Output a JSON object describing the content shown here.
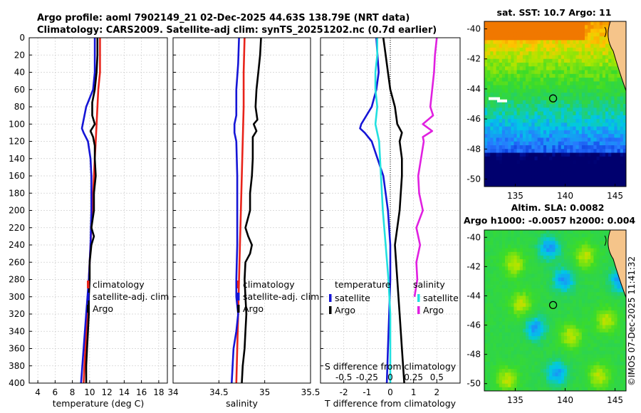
{
  "figure": {
    "title1": "Argo profile: aoml 7902149_21 02-Dec-2025 44.63S 138.79E (NRT data)",
    "title2": "Climatology: CARS2009. Satellite-adj clim: synTS_20251202.nc (0.7d earlier)",
    "watermark": "©IMOS 07-Dec-2025 11:41:32"
  },
  "chart_data": [
    {
      "type": "line",
      "name": "temperature-profile",
      "xlabel": "temperature (deg C)",
      "xlim": [
        3,
        19
      ],
      "xticks": [
        4,
        6,
        8,
        10,
        12,
        14,
        16,
        18
      ],
      "ylim": [
        400,
        0
      ],
      "yticks": [
        0,
        20,
        40,
        60,
        80,
        100,
        120,
        140,
        160,
        180,
        200,
        220,
        240,
        260,
        280,
        300,
        320,
        340,
        360,
        380,
        400
      ],
      "grid": true,
      "legend_position": "bottom-right",
      "legend": [
        "climatology",
        "satellite-adj. clim",
        "Argo"
      ],
      "series": [
        {
          "name": "climatology",
          "color": "#e8231a",
          "depth": [
            0,
            20,
            40,
            60,
            80,
            100,
            120,
            140,
            160,
            200,
            240,
            280,
            320,
            360,
            400
          ],
          "values": [
            11.2,
            11.2,
            11.2,
            11.0,
            10.9,
            10.8,
            10.7,
            10.6,
            10.5,
            10.3,
            10.1,
            9.9,
            9.7,
            9.5,
            9.3
          ]
        },
        {
          "name": "satellite-adj. clim",
          "color": "#1515d6",
          "depth": [
            0,
            20,
            40,
            60,
            70,
            80,
            90,
            100,
            105,
            110,
            120,
            140,
            160,
            200,
            240,
            280,
            320,
            360,
            400
          ],
          "values": [
            10.6,
            10.6,
            10.6,
            10.4,
            10.0,
            9.6,
            9.4,
            9.2,
            9.1,
            9.3,
            9.8,
            10.1,
            10.2,
            10.2,
            10.1,
            9.9,
            9.6,
            9.3,
            9.0
          ]
        },
        {
          "name": "Argo",
          "color": "#000000",
          "depth": [
            0,
            20,
            40,
            60,
            75,
            90,
            100,
            108,
            115,
            125,
            140,
            160,
            180,
            200,
            220,
            230,
            240,
            260,
            280,
            300,
            320,
            340,
            360,
            380,
            400
          ],
          "values": [
            10.9,
            10.9,
            10.8,
            10.6,
            10.3,
            10.3,
            10.6,
            10.1,
            10.4,
            10.6,
            10.6,
            10.7,
            10.5,
            10.5,
            10.2,
            10.5,
            10.2,
            10.0,
            10.0,
            9.9,
            9.9,
            9.8,
            9.7,
            9.6,
            9.6
          ]
        }
      ]
    },
    {
      "type": "line",
      "name": "salinity-profile",
      "xlabel": "salinity",
      "xlim": [
        34,
        35.5
      ],
      "xticks": [
        34,
        34.5,
        35,
        35.5
      ],
      "ylim": [
        400,
        0
      ],
      "grid": true,
      "legend_position": "bottom-right",
      "legend": [
        "climatology",
        "satellite-adj. clim",
        "Argo"
      ],
      "series": [
        {
          "name": "climatology",
          "color": "#e8231a",
          "depth": [
            0,
            40,
            80,
            120,
            160,
            200,
            240,
            280,
            320,
            360,
            400
          ],
          "values": [
            34.78,
            34.77,
            34.77,
            34.76,
            34.75,
            34.74,
            34.73,
            34.72,
            34.71,
            34.7,
            34.69
          ]
        },
        {
          "name": "satellite-adj. clim",
          "color": "#1515d6",
          "depth": [
            0,
            30,
            60,
            90,
            100,
            110,
            120,
            160,
            200,
            240,
            280,
            300,
            320,
            340,
            360,
            380,
            400
          ],
          "values": [
            34.72,
            34.71,
            34.69,
            34.69,
            34.67,
            34.67,
            34.69,
            34.7,
            34.7,
            34.7,
            34.69,
            34.69,
            34.71,
            34.69,
            34.66,
            34.65,
            34.64
          ]
        },
        {
          "name": "Argo",
          "color": "#000000",
          "depth": [
            0,
            20,
            40,
            60,
            80,
            95,
            100,
            108,
            115,
            120,
            140,
            160,
            180,
            200,
            220,
            230,
            240,
            250,
            260,
            280,
            300,
            320,
            340,
            360,
            380,
            400
          ],
          "values": [
            34.96,
            34.95,
            34.93,
            34.91,
            34.9,
            34.92,
            34.88,
            34.91,
            34.87,
            34.87,
            34.87,
            34.86,
            34.84,
            34.84,
            34.79,
            34.82,
            34.86,
            34.84,
            34.79,
            34.78,
            34.79,
            34.8,
            34.79,
            34.78,
            34.76,
            34.75
          ]
        }
      ]
    },
    {
      "type": "line",
      "name": "difference-profile",
      "xlabel": "T difference from climatology",
      "top_xlabel": "S difference from climatology",
      "xlim": [
        -3,
        3
      ],
      "xticks": [
        -2,
        -1,
        0,
        1,
        2
      ],
      "top_xticks": [
        "-0.5",
        "-0.25",
        "0",
        "0.25",
        "0.5"
      ],
      "ylim": [
        400,
        0
      ],
      "grid": true,
      "legend_position": "bottom",
      "legend_headers": [
        "temperature",
        "salinity"
      ],
      "legend": [
        "satellite",
        "Argo",
        "satellite",
        "Argo"
      ],
      "series": [
        {
          "name": "temperature satellite",
          "color": "#1515d6",
          "depth": [
            0,
            20,
            40,
            60,
            80,
            100,
            105,
            110,
            120,
            160,
            200,
            240,
            280,
            320,
            360,
            400
          ],
          "values": [
            -0.6,
            -0.55,
            -0.5,
            -0.6,
            -0.8,
            -1.25,
            -1.3,
            -1.1,
            -0.8,
            -0.3,
            -0.1,
            0.0,
            0.0,
            -0.05,
            -0.1,
            -0.15
          ]
        },
        {
          "name": "temperature Argo",
          "color": "#000000",
          "depth": [
            0,
            20,
            40,
            60,
            80,
            100,
            110,
            120,
            140,
            160,
            200,
            240,
            280,
            320,
            360,
            400
          ],
          "values": [
            -0.3,
            -0.2,
            -0.1,
            0.0,
            0.2,
            0.3,
            0.5,
            0.4,
            0.5,
            0.5,
            0.4,
            0.2,
            0.3,
            0.4,
            0.5,
            0.6
          ]
        },
        {
          "name": "salinity satellite",
          "color": "#22e0e0",
          "depth": [
            0,
            20,
            40,
            60,
            80,
            100,
            120,
            160,
            200,
            240,
            280,
            320,
            360,
            400
          ],
          "values": [
            -0.14,
            -0.14,
            -0.16,
            -0.16,
            -0.14,
            -0.16,
            -0.12,
            -0.1,
            -0.08,
            -0.05,
            -0.02,
            0.0,
            0.0,
            0.0
          ]
        },
        {
          "name": "salinity Argo",
          "color": "#e020e0",
          "depth": [
            0,
            20,
            40,
            60,
            80,
            90,
            100,
            108,
            115,
            120,
            140,
            160,
            180,
            200,
            220,
            240,
            260,
            280,
            300
          ],
          "values": [
            0.5,
            0.48,
            0.47,
            0.45,
            0.43,
            0.46,
            0.35,
            0.45,
            0.35,
            0.36,
            0.33,
            0.3,
            0.31,
            0.35,
            0.28,
            0.32,
            0.28,
            0.29,
            0.26
          ]
        }
      ]
    },
    {
      "type": "heatmap",
      "name": "sst-map",
      "title": "sat. SST: 10.7 Argo: 11",
      "xticks": [
        135,
        140,
        145
      ],
      "yticks": [
        -40,
        -42,
        -44,
        -46,
        -48,
        -50
      ],
      "float_position": [
        138.79,
        -44.63
      ]
    },
    {
      "type": "heatmap",
      "name": "sla-map",
      "title1": "Altim. SLA: 0.0082",
      "title2": "Argo h1000: -0.0057 h2000: 0.004",
      "xticks": [
        135,
        140,
        145
      ],
      "yticks": [
        -40,
        -42,
        -44,
        -46,
        -48,
        -50
      ],
      "float_position": [
        138.79,
        -44.63
      ]
    }
  ]
}
